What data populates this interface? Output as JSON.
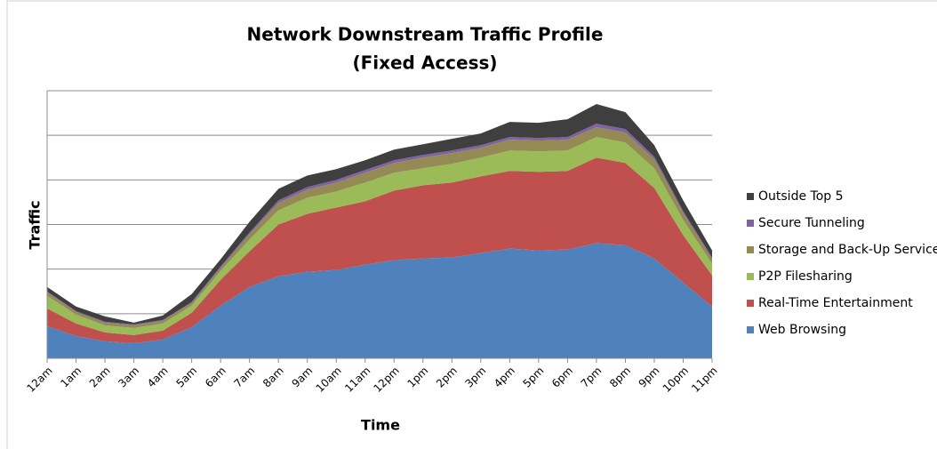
{
  "chart_data": {
    "type": "stacked-area",
    "title": "Network Downstream Traffic Profile",
    "subtitle": "(Fixed Access)",
    "x_label": "Time",
    "y_label": "Traffic",
    "categories": [
      "12am",
      "1am",
      "2am",
      "3am",
      "4am",
      "5am",
      "6am",
      "7am",
      "8am",
      "9am",
      "10am",
      "11am",
      "12pm",
      "1pm",
      "2pm",
      "3pm",
      "4pm",
      "5pm",
      "6pm",
      "7pm",
      "8pm",
      "9pm",
      "10pm",
      "11pm"
    ],
    "series": [
      {
        "name": "Web Browsing",
        "color": "#4f81bd",
        "values": [
          0.72,
          0.5,
          0.38,
          0.34,
          0.42,
          0.7,
          1.18,
          1.6,
          1.84,
          1.94,
          1.98,
          2.1,
          2.2,
          2.24,
          2.26,
          2.36,
          2.46,
          2.42,
          2.44,
          2.58,
          2.54,
          2.24,
          1.7,
          1.16
        ]
      },
      {
        "name": "Real-Time Entertainment",
        "color": "#c0504d",
        "values": [
          0.4,
          0.28,
          0.2,
          0.18,
          0.2,
          0.32,
          0.58,
          0.8,
          1.16,
          1.3,
          1.4,
          1.42,
          1.56,
          1.64,
          1.68,
          1.72,
          1.74,
          1.76,
          1.76,
          1.92,
          1.84,
          1.58,
          1.06,
          0.7
        ]
      },
      {
        "name": "P2P Filesharing",
        "color": "#9bbb59",
        "values": [
          0.28,
          0.2,
          0.16,
          0.16,
          0.16,
          0.16,
          0.2,
          0.26,
          0.32,
          0.36,
          0.36,
          0.42,
          0.4,
          0.38,
          0.42,
          0.42,
          0.46,
          0.46,
          0.46,
          0.46,
          0.46,
          0.44,
          0.34,
          0.26
        ]
      },
      {
        "name": "Storage and Back-Up Services",
        "color": "#948a54",
        "values": [
          0.08,
          0.06,
          0.06,
          0.06,
          0.06,
          0.06,
          0.06,
          0.12,
          0.16,
          0.18,
          0.2,
          0.22,
          0.22,
          0.24,
          0.24,
          0.22,
          0.24,
          0.24,
          0.24,
          0.22,
          0.22,
          0.2,
          0.16,
          0.1
        ]
      },
      {
        "name": "Secure Tunneling",
        "color": "#8064a2",
        "values": [
          0.02,
          0.02,
          0.02,
          0.02,
          0.02,
          0.02,
          0.04,
          0.04,
          0.06,
          0.06,
          0.06,
          0.06,
          0.06,
          0.06,
          0.06,
          0.06,
          0.06,
          0.06,
          0.06,
          0.08,
          0.08,
          0.06,
          0.04,
          0.04
        ]
      },
      {
        "name": "Outside Top 5",
        "color": "#3f3f3f",
        "values": [
          0.1,
          0.1,
          0.12,
          0.04,
          0.1,
          0.18,
          0.16,
          0.24,
          0.26,
          0.26,
          0.24,
          0.22,
          0.24,
          0.24,
          0.26,
          0.26,
          0.34,
          0.34,
          0.4,
          0.44,
          0.38,
          0.26,
          0.24,
          0.16
        ]
      }
    ],
    "ylim": [
      0,
      6
    ],
    "yticks": [
      0,
      1,
      2,
      3,
      4,
      5,
      6
    ],
    "grid": true,
    "legend": "right"
  }
}
